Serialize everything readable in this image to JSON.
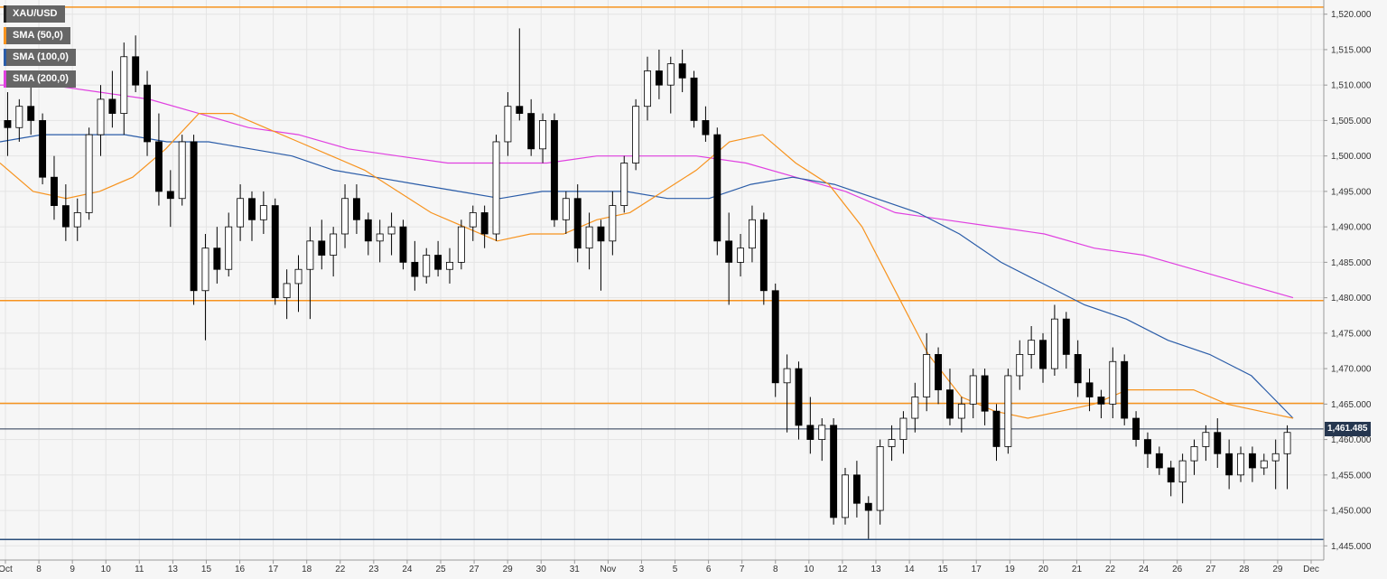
{
  "chart_data": {
    "type": "candlestick",
    "symbol": "XAU/USD",
    "legend": [
      {
        "label": "XAU/USD",
        "color": "#000000"
      },
      {
        "label": "SMA (50,0)",
        "color": "#f7931e"
      },
      {
        "label": "SMA (100,0)",
        "color": "#2a5ca8"
      },
      {
        "label": "SMA (200,0)",
        "color": "#e040e0"
      }
    ],
    "ylim": [
      1443,
      1522
    ],
    "y_ticks": [
      "1,445.000",
      "1,450.000",
      "1,455.000",
      "1,460.000",
      "1,465.000",
      "1,470.000",
      "1,475.000",
      "1,480.000",
      "1,485.000",
      "1,490.000",
      "1,495.000",
      "1,500.000",
      "1,505.000",
      "1,510.000",
      "1,515.000",
      "1,520.000"
    ],
    "x_ticks": [
      "Oct",
      "8",
      "9",
      "10",
      "11",
      "13",
      "15",
      "16",
      "17",
      "18",
      "22",
      "23",
      "24",
      "25",
      "27",
      "29",
      "30",
      "31",
      "Nov",
      "3",
      "5",
      "6",
      "7",
      "8",
      "10",
      "12",
      "13",
      "14",
      "15",
      "17",
      "19",
      "20",
      "21",
      "22",
      "24",
      "26",
      "27",
      "28",
      "29",
      "Dec"
    ],
    "last_price": "1,461.485",
    "last_price_value": 1461.485,
    "horizontal_levels": [
      {
        "value": 1521.0,
        "color": "#f7931e"
      },
      {
        "value": 1479.6,
        "color": "#f7931e"
      },
      {
        "value": 1465.1,
        "color": "#f7931e"
      },
      {
        "value": 1445.9,
        "color": "#2a4d7a"
      }
    ],
    "candles": [
      [
        1505,
        1509,
        1500,
        1504
      ],
      [
        1504,
        1508,
        1502,
        1507
      ],
      [
        1507,
        1510,
        1503,
        1505
      ],
      [
        1505,
        1506,
        1496,
        1497
      ],
      [
        1497,
        1500,
        1491,
        1493
      ],
      [
        1493,
        1496,
        1488,
        1490
      ],
      [
        1490,
        1494,
        1488,
        1492
      ],
      [
        1492,
        1504,
        1491,
        1503
      ],
      [
        1503,
        1510,
        1500,
        1508
      ],
      [
        1508,
        1512,
        1504,
        1506
      ],
      [
        1506,
        1516,
        1503,
        1514
      ],
      [
        1514,
        1517,
        1509,
        1510
      ],
      [
        1510,
        1512,
        1500,
        1502
      ],
      [
        1502,
        1506,
        1493,
        1495
      ],
      [
        1495,
        1498,
        1490,
        1494
      ],
      [
        1494,
        1503,
        1493,
        1502
      ],
      [
        1502,
        1503,
        1479,
        1481
      ],
      [
        1481,
        1489,
        1474,
        1487
      ],
      [
        1487,
        1490,
        1482,
        1484
      ],
      [
        1484,
        1492,
        1483,
        1490
      ],
      [
        1490,
        1496,
        1488,
        1494
      ],
      [
        1494,
        1495,
        1488,
        1491
      ],
      [
        1491,
        1495,
        1489,
        1493
      ],
      [
        1493,
        1494,
        1479,
        1480
      ],
      [
        1480,
        1484,
        1477,
        1482
      ],
      [
        1482,
        1486,
        1478,
        1484
      ],
      [
        1484,
        1490,
        1477,
        1488
      ],
      [
        1488,
        1491,
        1484,
        1486
      ],
      [
        1486,
        1490,
        1483,
        1489
      ],
      [
        1489,
        1496,
        1487,
        1494
      ],
      [
        1494,
        1496,
        1489,
        1491
      ],
      [
        1491,
        1492,
        1486,
        1488
      ],
      [
        1488,
        1491,
        1485,
        1489
      ],
      [
        1489,
        1492,
        1486,
        1490
      ],
      [
        1490,
        1491,
        1484,
        1485
      ],
      [
        1485,
        1488,
        1481,
        1483
      ],
      [
        1483,
        1487,
        1482,
        1486
      ],
      [
        1486,
        1488,
        1483,
        1484
      ],
      [
        1484,
        1487,
        1482,
        1485
      ],
      [
        1485,
        1491,
        1484,
        1490
      ],
      [
        1490,
        1493,
        1488,
        1492
      ],
      [
        1492,
        1493,
        1487,
        1489
      ],
      [
        1489,
        1503,
        1488,
        1502
      ],
      [
        1502,
        1509,
        1500,
        1507
      ],
      [
        1507,
        1518,
        1505,
        1506
      ],
      [
        1506,
        1508,
        1500,
        1501
      ],
      [
        1501,
        1506,
        1499,
        1505
      ],
      [
        1505,
        1506,
        1490,
        1491
      ],
      [
        1491,
        1495,
        1489,
        1494
      ],
      [
        1494,
        1496,
        1485,
        1487
      ],
      [
        1487,
        1492,
        1484,
        1490
      ],
      [
        1490,
        1491,
        1481,
        1488
      ],
      [
        1488,
        1495,
        1486,
        1493
      ],
      [
        1493,
        1500,
        1492,
        1499
      ],
      [
        1499,
        1508,
        1498,
        1507
      ],
      [
        1507,
        1514,
        1505,
        1512
      ],
      [
        1512,
        1515,
        1508,
        1510
      ],
      [
        1510,
        1514,
        1506,
        1513
      ],
      [
        1513,
        1515,
        1509,
        1511
      ],
      [
        1511,
        1512,
        1504,
        1505
      ],
      [
        1505,
        1507,
        1502,
        1503
      ],
      [
        1503,
        1504,
        1486,
        1488
      ],
      [
        1488,
        1492,
        1479,
        1485
      ],
      [
        1485,
        1489,
        1483,
        1487
      ],
      [
        1487,
        1493,
        1485,
        1491
      ],
      [
        1491,
        1492,
        1479,
        1481
      ],
      [
        1481,
        1482,
        1466,
        1468
      ],
      [
        1468,
        1472,
        1461,
        1470
      ],
      [
        1470,
        1471,
        1460,
        1462
      ],
      [
        1462,
        1466,
        1458,
        1460
      ],
      [
        1460,
        1463,
        1457,
        1462
      ],
      [
        1462,
        1463,
        1448,
        1449
      ],
      [
        1449,
        1456,
        1448,
        1455
      ],
      [
        1455,
        1457,
        1449,
        1451
      ],
      [
        1451,
        1452,
        1446,
        1450
      ],
      [
        1450,
        1460,
        1448,
        1459
      ],
      [
        1459,
        1462,
        1457,
        1460
      ],
      [
        1460,
        1464,
        1458,
        1463
      ],
      [
        1463,
        1468,
        1461,
        1466
      ],
      [
        1466,
        1475,
        1464,
        1472
      ],
      [
        1472,
        1473,
        1465,
        1467
      ],
      [
        1467,
        1470,
        1462,
        1463
      ],
      [
        1463,
        1466,
        1461,
        1465
      ],
      [
        1465,
        1470,
        1463,
        1469
      ],
      [
        1469,
        1470,
        1462,
        1464
      ],
      [
        1464,
        1465,
        1457,
        1459
      ],
      [
        1459,
        1470,
        1458,
        1469
      ],
      [
        1469,
        1474,
        1467,
        1472
      ],
      [
        1472,
        1476,
        1470,
        1474
      ],
      [
        1474,
        1475,
        1468,
        1470
      ],
      [
        1470,
        1479,
        1469,
        1477
      ],
      [
        1477,
        1478,
        1470,
        1472
      ],
      [
        1472,
        1474,
        1466,
        1468
      ],
      [
        1468,
        1470,
        1464,
        1466
      ],
      [
        1466,
        1467,
        1463,
        1465
      ],
      [
        1465,
        1473,
        1463,
        1471
      ],
      [
        1471,
        1472,
        1462,
        1463
      ],
      [
        1463,
        1464,
        1459,
        1460
      ],
      [
        1460,
        1461,
        1456,
        1458
      ],
      [
        1458,
        1459,
        1455,
        1456
      ],
      [
        1456,
        1457,
        1452,
        1454
      ],
      [
        1454,
        1458,
        1451,
        1457
      ],
      [
        1457,
        1460,
        1455,
        1459
      ],
      [
        1459,
        1462,
        1457,
        1461
      ],
      [
        1461,
        1463,
        1456,
        1458
      ],
      [
        1458,
        1460,
        1453,
        1455
      ],
      [
        1455,
        1459,
        1454,
        1458
      ],
      [
        1458,
        1459,
        1454,
        1456
      ],
      [
        1456,
        1458,
        1455,
        1457
      ],
      [
        1457,
        1460,
        1453,
        1458
      ],
      [
        1458,
        1462,
        1453,
        1461
      ]
    ],
    "sma50": [
      1499,
      1495,
      1494,
      1495,
      1497,
      1501,
      1506,
      1506,
      1504,
      1502,
      1500,
      1498,
      1495,
      1492,
      1490,
      1488,
      1489,
      1489,
      1491,
      1492,
      1495,
      1498,
      1502,
      1503,
      1499,
      1496,
      1490,
      1481,
      1472,
      1466,
      1464,
      1463,
      1464,
      1465,
      1467,
      1467,
      1467,
      1465,
      1464,
      1463
    ],
    "sma100": [
      1502,
      1503,
      1503,
      1503,
      1502,
      1502,
      1501,
      1500,
      1498,
      1497,
      1496,
      1495,
      1494,
      1495,
      1495,
      1495,
      1494,
      1494,
      1496,
      1497,
      1496,
      1494,
      1492,
      1489,
      1485,
      1482,
      1479,
      1477,
      1474,
      1472,
      1469,
      1463
    ],
    "sma200": [
      1510,
      1510,
      1509,
      1508,
      1506,
      1504,
      1503,
      1501,
      1500,
      1499,
      1499,
      1499,
      1500,
      1500,
      1500,
      1499,
      1497,
      1495,
      1492,
      1491,
      1490,
      1489,
      1487,
      1486,
      1484,
      1482,
      1480
    ]
  }
}
